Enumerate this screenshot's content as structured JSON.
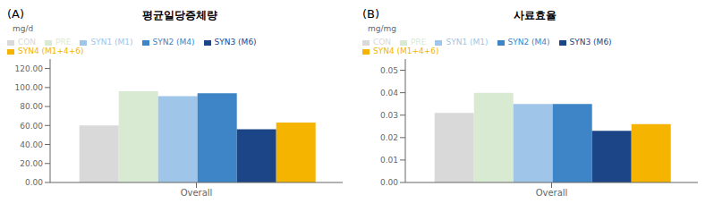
{
  "chart_data": [
    {
      "type": "bar",
      "title": "평균일당증체량",
      "ylabel": "mg/d",
      "annotations": [
        "(A)"
      ],
      "categories": [
        "Overall"
      ],
      "series": [
        {
          "name": "CON",
          "color": "#d9d9d9",
          "values": [
            60.0
          ]
        },
        {
          "name": "PRE",
          "color": "#d9ead3",
          "values": [
            96.0
          ]
        },
        {
          "name": "SYN1 (M1)",
          "color": "#9fc5e8",
          "values": [
            91.0
          ]
        },
        {
          "name": "SYN2 (M4)",
          "color": "#3d85c6",
          "values": [
            94.0
          ]
        },
        {
          "name": "SYN3 (M6)",
          "color": "#1c4587",
          "values": [
            56.0
          ]
        },
        {
          "name": "SYN4 (M1+4+6)",
          "color": "#f4b400",
          "values": [
            63.0
          ]
        }
      ],
      "ylim": [
        0,
        130
      ],
      "yticks": [
        {
          "value": 0,
          "label": "0.00"
        },
        {
          "value": 20,
          "label": "20.00"
        },
        {
          "value": 40,
          "label": "40.00"
        },
        {
          "value": 60,
          "label": "60.00"
        },
        {
          "value": 80,
          "label": "80.00"
        },
        {
          "value": 100,
          "label": "100.00"
        },
        {
          "value": 120,
          "label": "120.00"
        }
      ],
      "grid": false,
      "legend": "top"
    },
    {
      "type": "bar",
      "title": "사료효율",
      "ylabel": "mg/mg",
      "annotations": [
        "(B)"
      ],
      "categories": [
        "Overall"
      ],
      "series": [
        {
          "name": "CON",
          "color": "#d9d9d9",
          "values": [
            0.031
          ]
        },
        {
          "name": "PRE",
          "color": "#d9ead3",
          "values": [
            0.04
          ]
        },
        {
          "name": "SYN1 (M1)",
          "color": "#9fc5e8",
          "values": [
            0.035
          ]
        },
        {
          "name": "SYN2 (M4)",
          "color": "#3d85c6",
          "values": [
            0.035
          ]
        },
        {
          "name": "SYN3 (M6)",
          "color": "#1c4587",
          "values": [
            0.023
          ]
        },
        {
          "name": "SYN4 (M1+4+6)",
          "color": "#f4b400",
          "values": [
            0.026
          ]
        }
      ],
      "ylim": [
        0,
        0.055
      ],
      "yticks": [
        {
          "value": 0,
          "label": "0.00"
        },
        0.01,
        0.02,
        0.03,
        0.04,
        0.05
      ],
      "grid": false,
      "legend": "top"
    }
  ]
}
